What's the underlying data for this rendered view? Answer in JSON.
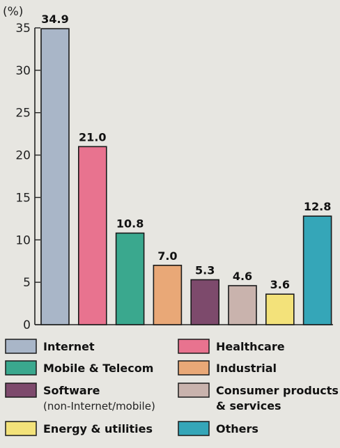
{
  "chart_data": {
    "type": "bar",
    "ylabel": "(%)",
    "ylim": [
      0,
      35
    ],
    "yticks": [
      0,
      5,
      10,
      15,
      20,
      25,
      30,
      35
    ],
    "categories": [
      "Internet",
      "Healthcare",
      "Mobile & Telecom",
      "Industrial",
      "Software",
      "Consumer products & services",
      "Energy & utilities",
      "Others"
    ],
    "values": [
      34.9,
      21.0,
      10.8,
      7.0,
      5.3,
      4.6,
      3.6,
      12.8
    ],
    "value_labels": [
      "34.9",
      "21.0",
      "10.8",
      "7.0",
      "5.3",
      "4.6",
      "3.6",
      "12.8"
    ],
    "colors": [
      "#a9b6c8",
      "#e8738f",
      "#3aa88e",
      "#e9a877",
      "#7d4a6c",
      "#c9b3ad",
      "#f3e27a",
      "#35a6b8"
    ],
    "legend": {
      "placement": "bottom",
      "items": [
        {
          "label": "Internet",
          "sublabel": "",
          "color": "#a9b6c8"
        },
        {
          "label": "Healthcare",
          "sublabel": "",
          "color": "#e8738f"
        },
        {
          "label": "Mobile & Telecom",
          "sublabel": "",
          "color": "#3aa88e"
        },
        {
          "label": "Industrial",
          "sublabel": "",
          "color": "#e9a877"
        },
        {
          "label": "Software",
          "sublabel": "(non-Internet/mobile)",
          "color": "#7d4a6c"
        },
        {
          "label": "Consumer products",
          "sublabel": "& services",
          "color": "#c9b3ad"
        },
        {
          "label": "Energy & utilities",
          "sublabel": "",
          "color": "#f3e27a"
        },
        {
          "label": "Others",
          "sublabel": "",
          "color": "#35a6b8"
        }
      ]
    },
    "grid": false
  }
}
